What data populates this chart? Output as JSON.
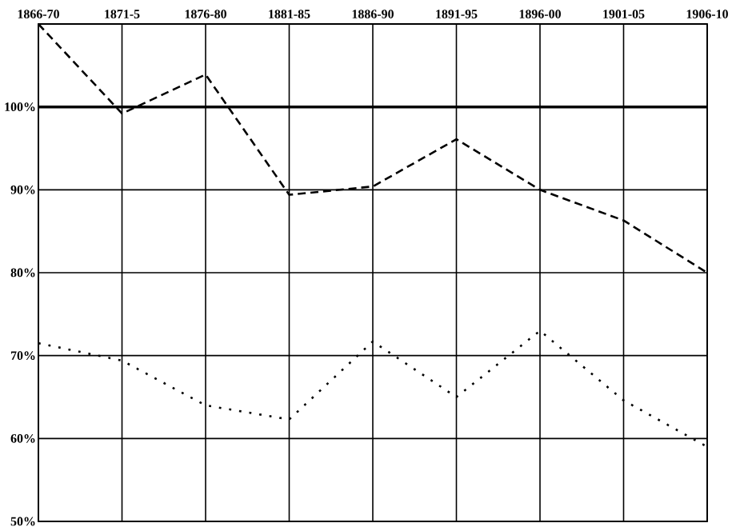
{
  "chart_data": {
    "type": "line",
    "categories": [
      "1866-70",
      "1871-5",
      "1876-80",
      "1881-85",
      "1886-90",
      "1891-95",
      "1896-00",
      "1901-05",
      "1906-10"
    ],
    "series": [
      {
        "color": "#000000",
        "line_style": "dashed",
        "values": [
          110,
          99.2,
          103.9,
          89.4,
          90.4,
          96.1,
          90,
          86.3,
          80
        ]
      },
      {
        "color": "#000000",
        "line_style": "dotted",
        "values": [
          71.5,
          69.4,
          64,
          62.3,
          71.7,
          65,
          73,
          64.6,
          59
        ]
      }
    ],
    "ylim": [
      50,
      110
    ],
    "yticks": [
      {
        "value": 50,
        "label": "50%"
      },
      {
        "value": 60,
        "label": "60%"
      },
      {
        "value": 70,
        "label": "70%"
      },
      {
        "value": 80,
        "label": "80%"
      },
      {
        "value": 90,
        "label": "90%"
      },
      {
        "value": 100,
        "label": "100%"
      }
    ],
    "ref_lines": [
      {
        "axis": "y",
        "value": 100,
        "color": "#000000"
      }
    ],
    "grid": true
  }
}
